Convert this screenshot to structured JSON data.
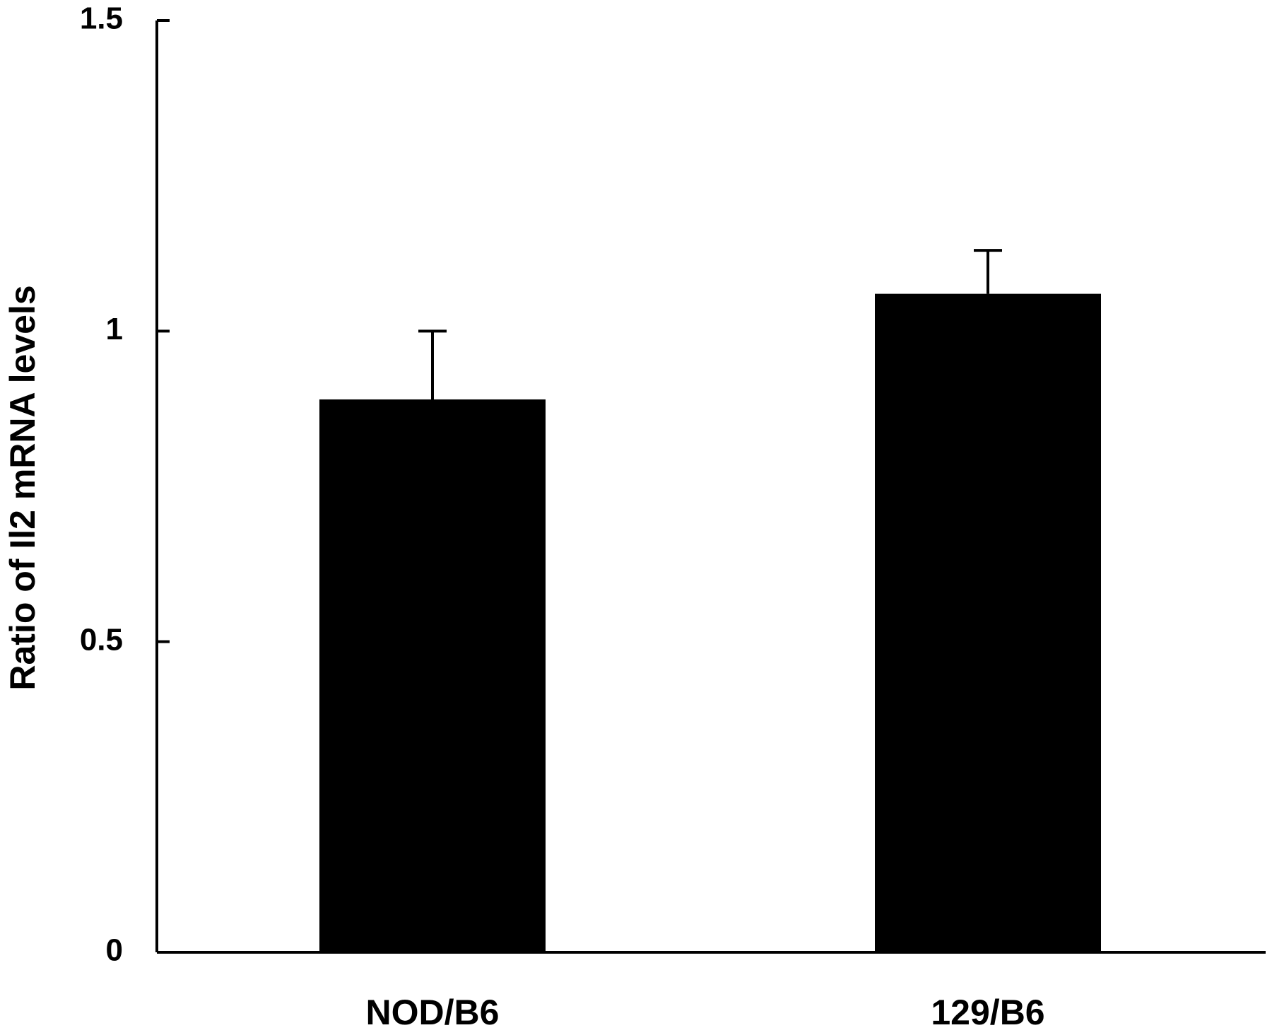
{
  "chart_data": {
    "type": "bar",
    "ylabel": "Ratio of Il2 mRNA levels",
    "categories": [
      "NOD/B6",
      "129/B6"
    ],
    "values": [
      0.89,
      1.06
    ],
    "errors": [
      0.11,
      0.07
    ],
    "color": "#000000",
    "ylim": [
      0,
      1.5
    ],
    "yticks": [
      0,
      0.5,
      1,
      1.5
    ],
    "grid": false
  }
}
